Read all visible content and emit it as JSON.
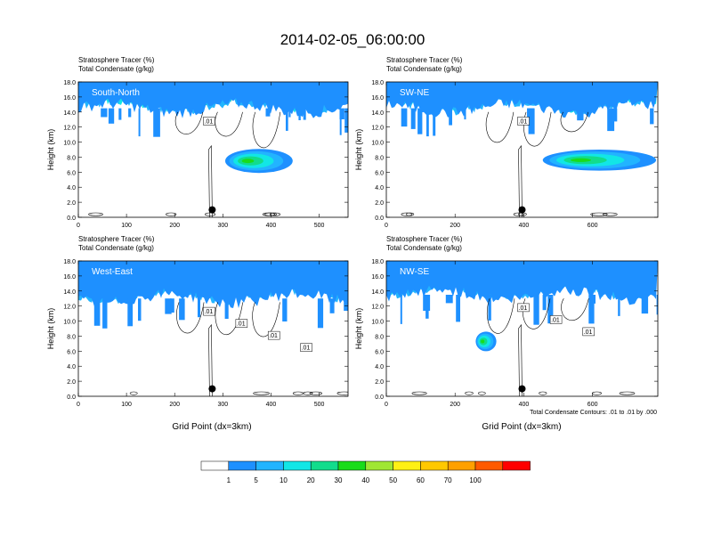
{
  "title": "2014-02-05_06:00:00",
  "panel_header": {
    "line1": "Stratosphere Tracer   (%)",
    "line2": "Total Condensate   (g/kg)"
  },
  "ylabel": "Height (km)",
  "xlabel": "Grid Point (dx=3km)",
  "contour_note": "Total Condensate Contours: .01 to .01 by .000",
  "colorbar": {
    "levels": [
      "1",
      "5",
      "10",
      "20",
      "30",
      "40",
      "50",
      "60",
      "70",
      "100"
    ],
    "colors": [
      "#ffffff",
      "#1e90ff",
      "#22b4ff",
      "#12e6e6",
      "#12dc8c",
      "#1adc1a",
      "#a0e632",
      "#fff014",
      "#ffc800",
      "#ffa000",
      "#ff5a00",
      "#ff0000"
    ]
  },
  "chart_data": [
    {
      "type": "heatmap",
      "label": "South-North",
      "ylim": [
        0,
        18
      ],
      "xlim": [
        0,
        560
      ],
      "xticks": [
        "0",
        "100",
        "200",
        "300",
        "400",
        "500"
      ],
      "yticks": [
        "0.0",
        "2.0",
        "4.0",
        "6.0",
        "8.0",
        "10.0",
        "12.0",
        "14.0",
        "16.0",
        "18.0"
      ],
      "contour_labels": [
        ".01"
      ],
      "point": {
        "x": 278,
        "y": 1.0
      },
      "strato_base_km": 14.5,
      "blobs": [
        {
          "x": 375,
          "y": 7.5,
          "w": 140,
          "h": 3.2
        }
      ]
    },
    {
      "type": "heatmap",
      "label": "SW-NE",
      "ylim": [
        0,
        18
      ],
      "xlim": [
        0,
        790
      ],
      "xticks": [
        "0",
        "200",
        "400",
        "600"
      ],
      "yticks": [
        "0.0",
        "2.0",
        "4.0",
        "6.0",
        "8.0",
        "10.0",
        "12.0",
        "14.0",
        "16.0",
        "18.0"
      ],
      "contour_labels": [
        ".01"
      ],
      "point": {
        "x": 395,
        "y": 1.0
      },
      "strato_base_km": 14.5,
      "blobs": [
        {
          "x": 620,
          "y": 7.6,
          "w": 330,
          "h": 2.8
        }
      ]
    },
    {
      "type": "heatmap",
      "label": "West-East",
      "ylim": [
        0,
        18
      ],
      "xlim": [
        0,
        560
      ],
      "xticks": [
        "0",
        "100",
        "200",
        "300",
        "400",
        "500"
      ],
      "yticks": [
        "0.0",
        "2.0",
        "4.0",
        "6.0",
        "8.0",
        "10.0",
        "12.0",
        "14.0",
        "16.0",
        "18.0"
      ],
      "contour_labels": [
        ".01",
        ".01",
        ".01",
        ".01"
      ],
      "point": {
        "x": 278,
        "y": 1.0
      },
      "strato_base_km": 13.0,
      "blobs": []
    },
    {
      "type": "heatmap",
      "label": "NW-SE",
      "ylim": [
        0,
        18
      ],
      "xlim": [
        0,
        790
      ],
      "xticks": [
        "0",
        "200",
        "400",
        "600"
      ],
      "yticks": [
        "0.0",
        "2.0",
        "4.0",
        "6.0",
        "8.0",
        "10.0",
        "12.0",
        "14.0",
        "16.0",
        "18.0"
      ],
      "contour_labels": [
        ".01",
        ".01",
        ".01"
      ],
      "point": {
        "x": 395,
        "y": 1.0
      },
      "strato_base_km": 13.5,
      "blobs": [
        {
          "x": 290,
          "y": 7.3,
          "w": 60,
          "h": 2.6
        }
      ]
    }
  ]
}
